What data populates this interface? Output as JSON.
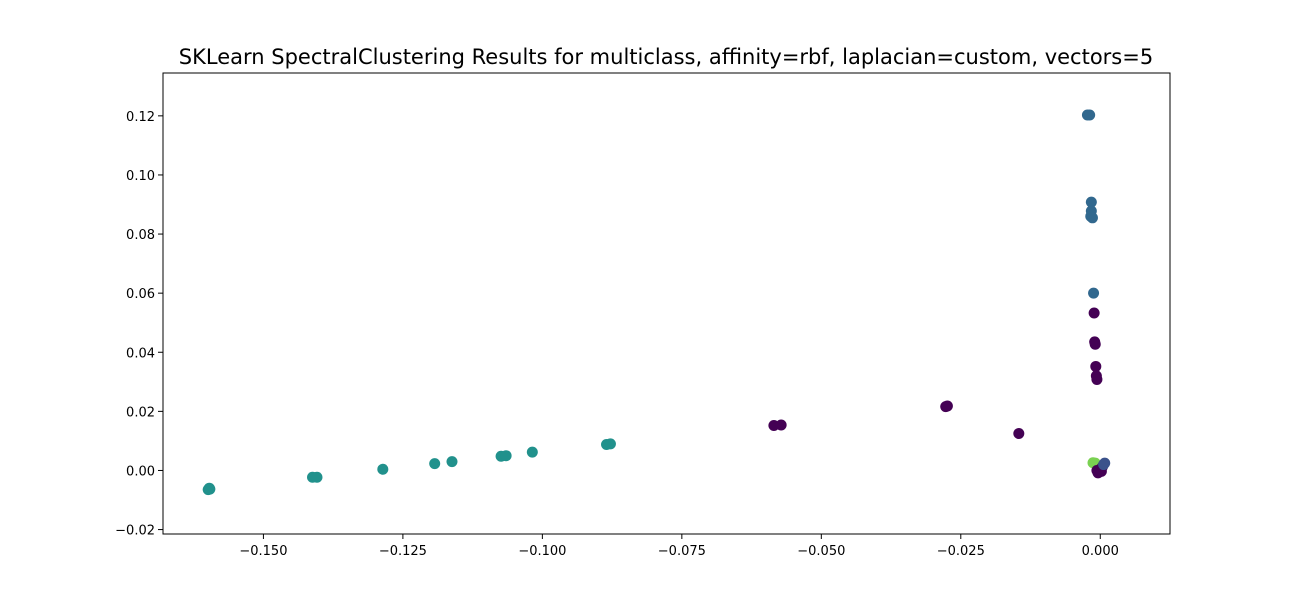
{
  "chart_data": {
    "type": "scatter",
    "title": "SKLearn SpectralClustering Results for multiclass, affinity=rbf, laplacian=custom, vectors=5",
    "xlabel": "",
    "ylabel": "",
    "xlim": [
      -0.168,
      0.0125
    ],
    "ylim": [
      -0.0215,
      0.1345
    ],
    "grid": false,
    "xticks": [
      -0.15,
      -0.125,
      -0.1,
      -0.075,
      -0.05,
      -0.025,
      0.0
    ],
    "xtick_labels": [
      "−0.150",
      "−0.125",
      "−0.100",
      "−0.075",
      "−0.050",
      "−0.025",
      "0.000"
    ],
    "yticks": [
      -0.02,
      0.0,
      0.02,
      0.04,
      0.06,
      0.08,
      0.1,
      0.12
    ],
    "ytick_labels": [
      "−0.02",
      "0.00",
      "0.02",
      "0.04",
      "0.06",
      "0.08",
      "0.10",
      "0.12"
    ],
    "cluster_colors": [
      "#440154",
      "#3b528b",
      "#21918c",
      "#31688e",
      "#7ad151"
    ],
    "points": [
      {
        "x": -0.1599,
        "y": -0.0065,
        "c": 2
      },
      {
        "x": -0.1597,
        "y": -0.006,
        "c": 2
      },
      {
        "x": -0.1596,
        "y": -0.0063,
        "c": 2
      },
      {
        "x": -0.1412,
        "y": -0.0023,
        "c": 2
      },
      {
        "x": -0.1404,
        "y": -0.0023,
        "c": 2
      },
      {
        "x": -0.1286,
        "y": 0.0004,
        "c": 2
      },
      {
        "x": -0.1193,
        "y": 0.0023,
        "c": 2
      },
      {
        "x": -0.1162,
        "y": 0.003,
        "c": 2
      },
      {
        "x": -0.1074,
        "y": 0.0048,
        "c": 2
      },
      {
        "x": -0.1065,
        "y": 0.005,
        "c": 2
      },
      {
        "x": -0.1018,
        "y": 0.0062,
        "c": 2
      },
      {
        "x": -0.0885,
        "y": 0.0088,
        "c": 2
      },
      {
        "x": -0.0878,
        "y": 0.009,
        "c": 2
      },
      {
        "x": -0.0585,
        "y": 0.0152,
        "c": 0
      },
      {
        "x": -0.0572,
        "y": 0.0154,
        "c": 0
      },
      {
        "x": -0.0277,
        "y": 0.0216,
        "c": 0
      },
      {
        "x": -0.0274,
        "y": 0.0218,
        "c": 0
      },
      {
        "x": -0.0146,
        "y": 0.0125,
        "c": 0
      },
      {
        "x": -0.0023,
        "y": 0.1203,
        "c": 3
      },
      {
        "x": -0.0019,
        "y": 0.1203,
        "c": 3
      },
      {
        "x": -0.0016,
        "y": 0.0908,
        "c": 3
      },
      {
        "x": -0.0016,
        "y": 0.0878,
        "c": 3
      },
      {
        "x": -0.0017,
        "y": 0.086,
        "c": 3
      },
      {
        "x": -0.0014,
        "y": 0.0855,
        "c": 3
      },
      {
        "x": -0.0012,
        "y": 0.06,
        "c": 3
      },
      {
        "x": -0.0011,
        "y": 0.0533,
        "c": 0
      },
      {
        "x": -0.001,
        "y": 0.0435,
        "c": 0
      },
      {
        "x": -0.0009,
        "y": 0.0427,
        "c": 0
      },
      {
        "x": -0.0008,
        "y": 0.0352,
        "c": 0
      },
      {
        "x": -0.0007,
        "y": 0.032,
        "c": 0
      },
      {
        "x": -0.0006,
        "y": 0.0308,
        "c": 0
      },
      {
        "x": -0.0013,
        "y": 0.0026,
        "c": 4
      },
      {
        "x": -0.0009,
        "y": 0.0025,
        "c": 4
      },
      {
        "x": -0.0006,
        "y": 0.0,
        "c": 0
      },
      {
        "x": -0.0004,
        "y": -0.0008,
        "c": 0
      },
      {
        "x": 0.0,
        "y": 0.0004,
        "c": 0
      },
      {
        "x": 0.0002,
        "y": -0.0003,
        "c": 0
      },
      {
        "x": 0.0004,
        "y": 0.0013,
        "c": 0
      },
      {
        "x": 0.0006,
        "y": 0.002,
        "c": 1
      },
      {
        "x": 0.0008,
        "y": 0.0025,
        "c": 1
      }
    ]
  }
}
